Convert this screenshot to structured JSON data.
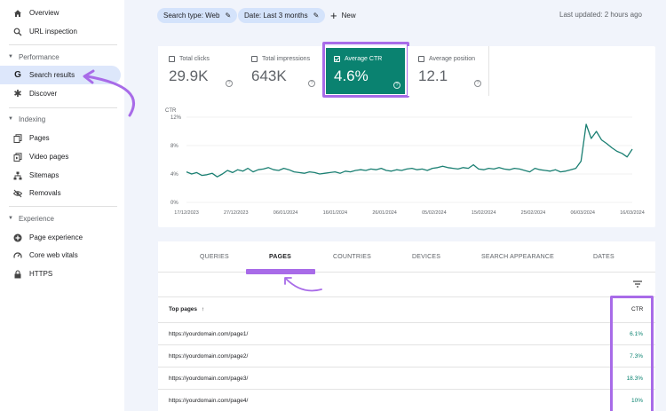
{
  "sidebar": {
    "top_items": [
      {
        "label": "Overview",
        "icon": "home-icon"
      },
      {
        "label": "URL inspection",
        "icon": "search-icon"
      }
    ],
    "sections": [
      {
        "title": "Performance",
        "items": [
          {
            "label": "Search results",
            "icon": "google-g-icon"
          },
          {
            "label": "Discover",
            "icon": "asterisk-icon"
          }
        ]
      },
      {
        "title": "Indexing",
        "items": [
          {
            "label": "Pages",
            "icon": "pages-icon"
          },
          {
            "label": "Video pages",
            "icon": "video-icon"
          },
          {
            "label": "Sitemaps",
            "icon": "sitemap-icon"
          },
          {
            "label": "Removals",
            "icon": "eye-off-icon"
          }
        ]
      },
      {
        "title": "Experience",
        "items": [
          {
            "label": "Page experience",
            "icon": "plus-circle-icon"
          },
          {
            "label": "Core web vitals",
            "icon": "gauge-icon"
          },
          {
            "label": "HTTPS",
            "icon": "lock-icon"
          }
        ]
      }
    ]
  },
  "filters": {
    "search_type": "Search type: Web",
    "date": "Date: Last 3 months",
    "new_label": "New",
    "last_updated": "Last updated: 2 hours ago"
  },
  "metrics": [
    {
      "label": "Total clicks",
      "value": "29.9K",
      "selected": false
    },
    {
      "label": "Total impressions",
      "value": "643K",
      "selected": false
    },
    {
      "label": "Average CTR",
      "value": "4.6%",
      "selected": true
    },
    {
      "label": "Average position",
      "value": "12.1",
      "selected": false
    }
  ],
  "help_glyph": "?",
  "chart_data": {
    "type": "line",
    "ylabel": "CTR",
    "yticks": [
      "12%",
      "8%",
      "4%",
      "0%"
    ],
    "ylim": [
      0,
      12
    ],
    "xticks": [
      "17/12/2023",
      "27/12/2023",
      "06/01/2024",
      "16/01/2024",
      "26/01/2024",
      "05/02/2024",
      "15/02/2024",
      "25/02/2024",
      "06/03/2024",
      "16/03/2024"
    ],
    "series": [
      {
        "color": "#1a7f72",
        "values": [
          4.3,
          4.0,
          4.2,
          3.8,
          3.9,
          4.1,
          3.6,
          4.0,
          4.5,
          4.2,
          4.6,
          4.4,
          4.8,
          4.3,
          4.6,
          4.7,
          4.9,
          4.6,
          4.5,
          4.8,
          4.6,
          4.3,
          4.2,
          4.1,
          4.3,
          4.2,
          4.0,
          4.1,
          4.2,
          4.3,
          4.1,
          4.4,
          4.3,
          4.5,
          4.6,
          4.5,
          4.7,
          4.6,
          4.8,
          4.5,
          4.4,
          4.6,
          4.5,
          4.7,
          4.8,
          4.6,
          4.7,
          4.5,
          4.8,
          4.9,
          5.1,
          4.9,
          4.8,
          4.7,
          4.9,
          4.8,
          5.3,
          4.7,
          4.6,
          4.8,
          4.7,
          4.9,
          4.7,
          4.6,
          4.8,
          4.7,
          4.5,
          4.3,
          4.8,
          4.6,
          4.5,
          4.4,
          4.6,
          4.3,
          4.4,
          4.6,
          4.8,
          5.8,
          11.0,
          9.0,
          10.0,
          8.8,
          8.3,
          7.7,
          7.2,
          6.9,
          6.4,
          7.5
        ]
      }
    ]
  },
  "tabs": [
    "QUERIES",
    "PAGES",
    "COUNTRIES",
    "DEVICES",
    "SEARCH APPEARANCE",
    "DATES"
  ],
  "table": {
    "col_label": "Top pages",
    "col_ctr": "CTR",
    "rows": [
      {
        "url": "https://yourdomain.com/page1/",
        "ctr": "6.1%"
      },
      {
        "url": "https://yourdomain.com/page2/",
        "ctr": "7.3%"
      },
      {
        "url": "https://yourdomain.com/page3/",
        "ctr": "18.3%"
      },
      {
        "url": "https://yourdomain.com/page4/",
        "ctr": "10%"
      }
    ]
  },
  "colors": {
    "accent_teal": "#0a8270",
    "highlight_purple": "#a86be8",
    "chip_blue": "#d4e3fb"
  }
}
